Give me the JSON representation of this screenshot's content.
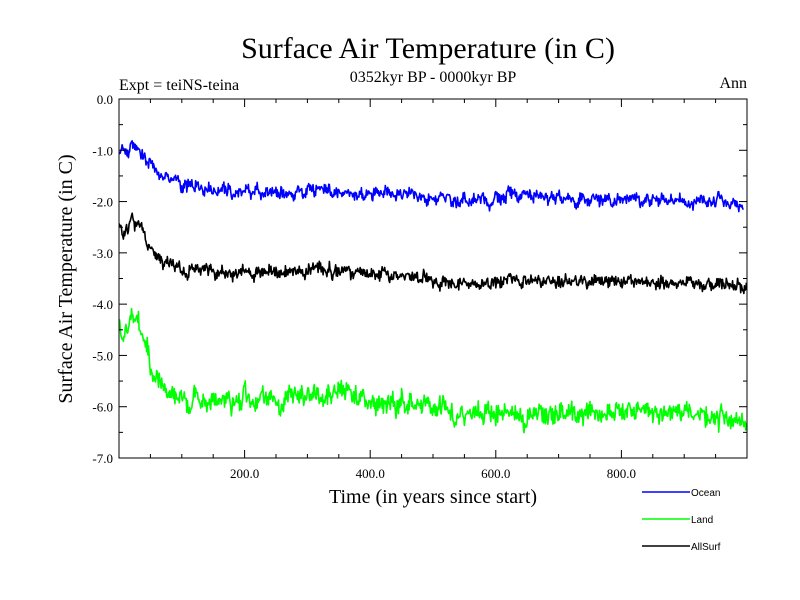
{
  "chart_data": {
    "type": "line",
    "title": "Surface Air Temperature (in C)",
    "subtitle": "0352kyr BP - 0000kyr BP",
    "experiment_label": "Expt = teiNS-teina",
    "season_label": "Ann",
    "xlabel": "Time (in years since start)",
    "ylabel": "Surface Air Temperature (in C)",
    "xlim": [
      0,
      1000
    ],
    "ylim": [
      -7.0,
      0.0
    ],
    "x_ticks": [
      200,
      400,
      600,
      800
    ],
    "x_tick_labels": [
      "200.0",
      "400.0",
      "600.0",
      "800.0"
    ],
    "y_ticks": [
      0,
      -1,
      -2,
      -3,
      -4,
      -5,
      -6,
      -7
    ],
    "y_tick_labels": [
      "0.0",
      "-1.0",
      "-2.0",
      "-3.0",
      "-4.0",
      "-5.0",
      "-6.0",
      "-7.0"
    ],
    "legend_position": "bottom-right",
    "x_step": 5,
    "series": [
      {
        "name": "Ocean",
        "color": "#0000ff",
        "values": [
          -1.05,
          -0.95,
          -1.0,
          -1.1,
          -0.85,
          -0.9,
          -0.95,
          -1.05,
          -1.1,
          -1.25,
          -1.2,
          -1.3,
          -1.4,
          -1.5,
          -1.55,
          -1.45,
          -1.55,
          -1.6,
          -1.5,
          -1.6,
          -1.75,
          -1.7,
          -1.7,
          -1.65,
          -1.75,
          -1.7,
          -1.7,
          -1.8,
          -1.75,
          -1.7,
          -1.8,
          -1.85,
          -1.75,
          -1.7,
          -1.8,
          -1.75,
          -1.9,
          -1.85,
          -1.8,
          -1.9,
          -1.8,
          -1.75,
          -1.85,
          -1.8,
          -1.7,
          -1.9,
          -1.85,
          -1.8,
          -1.8,
          -1.85,
          -1.75,
          -1.85,
          -1.8,
          -1.9,
          -1.8,
          -1.85,
          -1.9,
          -1.75,
          -1.8,
          -1.9,
          -1.75,
          -1.7,
          -1.8,
          -1.75,
          -1.7,
          -1.75,
          -1.8,
          -1.7,
          -1.9,
          -1.8,
          -1.85,
          -1.85,
          -1.75,
          -1.8,
          -1.9,
          -1.9,
          -1.85,
          -1.8,
          -1.95,
          -1.85,
          -1.9,
          -1.85,
          -1.8,
          -1.9,
          -1.85,
          -1.75,
          -1.85,
          -1.9,
          -1.95,
          -1.85,
          -1.9,
          -1.8,
          -1.85,
          -1.75,
          -1.85,
          -1.9,
          -1.95,
          -1.9,
          -2.0,
          -1.9,
          -1.95,
          -2.0,
          -1.9,
          -1.85,
          -2.0,
          -1.9,
          -2.0,
          -1.95,
          -2.05,
          -1.95,
          -1.9,
          -2.0,
          -2.05,
          -1.95,
          -2.0,
          -1.95,
          -1.9,
          -2.0,
          -2.1,
          -2.0,
          -1.9,
          -1.95,
          -1.95,
          -1.95,
          -1.75,
          -1.85,
          -1.8,
          -1.95,
          -1.9,
          -1.8,
          -1.85,
          -1.9,
          -1.95,
          -1.85,
          -1.9,
          -1.9,
          -1.95,
          -2.0,
          -1.85,
          -1.95,
          -1.9,
          -1.95,
          -2.0,
          -1.9,
          -1.95,
          -2.0,
          -2.05,
          -1.9,
          -1.95,
          -2.0,
          -2.0,
          -1.9,
          -1.95,
          -2.0,
          -2.0,
          -1.95,
          -1.9,
          -2.05,
          -1.95,
          -1.95,
          -2.0,
          -1.9,
          -1.95,
          -1.95,
          -1.95,
          -1.9,
          -2.05,
          -2.0,
          -1.95,
          -2.0,
          -1.95,
          -1.95,
          -2.0,
          -1.9,
          -1.95,
          -2.05,
          -1.95,
          -2.05,
          -1.95,
          -1.95,
          -2.0,
          -2.05,
          -2.0,
          -2.05,
          -1.95,
          -1.95,
          -1.9,
          -2.05,
          -1.95,
          -2.05,
          -2.0,
          -1.85,
          -2.0,
          -2.05,
          -2.1,
          -2.0,
          -2.05,
          -2.1,
          -2.1
        ]
      },
      {
        "name": "Land",
        "color": "#00ff00",
        "values": [
          -4.2,
          -4.8,
          -4.5,
          -4.6,
          -4.1,
          -4.3,
          -4.2,
          -4.6,
          -4.7,
          -4.85,
          -5.3,
          -5.4,
          -5.45,
          -5.5,
          -5.6,
          -5.75,
          -5.7,
          -5.75,
          -5.8,
          -5.85,
          -5.75,
          -5.95,
          -6.0,
          -6.05,
          -5.7,
          -5.85,
          -5.9,
          -5.85,
          -5.95,
          -5.95,
          -5.8,
          -5.95,
          -5.9,
          -5.85,
          -5.9,
          -5.8,
          -6.05,
          -5.9,
          -5.9,
          -6.0,
          -5.65,
          -5.75,
          -5.95,
          -5.95,
          -5.95,
          -5.8,
          -5.8,
          -5.85,
          -5.85,
          -5.8,
          -5.9,
          -6.0,
          -6.05,
          -5.8,
          -5.75,
          -5.8,
          -5.75,
          -5.8,
          -5.75,
          -5.9,
          -5.85,
          -5.8,
          -5.7,
          -5.8,
          -5.85,
          -5.9,
          -5.75,
          -5.75,
          -5.75,
          -5.7,
          -5.7,
          -5.65,
          -5.8,
          -5.6,
          -5.85,
          -5.75,
          -5.8,
          -5.7,
          -5.75,
          -5.95,
          -5.9,
          -5.85,
          -6.0,
          -5.9,
          -5.95,
          -6.0,
          -5.95,
          -5.85,
          -6.05,
          -6.05,
          -5.8,
          -6.05,
          -5.95,
          -5.85,
          -6.0,
          -6.0,
          -6.0,
          -6.0,
          -5.9,
          -5.95,
          -6.1,
          -6.1,
          -6.0,
          -5.95,
          -5.95,
          -6.05,
          -6.1,
          -6.25,
          -6.2,
          -6.1,
          -6.25,
          -6.05,
          -6.2,
          -6.1,
          -6.05,
          -6.15,
          -6.25,
          -6.0,
          -6.1,
          -6.15,
          -6.2,
          -6.05,
          -6.2,
          -6.15,
          -6.1,
          -6.2,
          -6.1,
          -6.25,
          -6.15,
          -6.35,
          -6.25,
          -6.2,
          -6.15,
          -6.2,
          -6.05,
          -6.15,
          -6.2,
          -6.15,
          -6.2,
          -6.1,
          -6.1,
          -6.05,
          -6.15,
          -6.15,
          -6.05,
          -6.1,
          -6.25,
          -6.15,
          -6.2,
          -6.05,
          -6.1,
          -6.1,
          -6.05,
          -6.2,
          -6.1,
          -6.2,
          -6.1,
          -6.1,
          -6.15,
          -6.0,
          -6.05,
          -6.1,
          -6.05,
          -6.0,
          -6.15,
          -6.05,
          -6.1,
          -6.05,
          -6.1,
          -6.1,
          -6.15,
          -6.15,
          -6.15,
          -6.15,
          -6.15,
          -6.05,
          -6.15,
          -6.05,
          -6.05,
          -6.15,
          -6.15,
          -6.05,
          -6.15,
          -6.2,
          -6.05,
          -6.15,
          -6.2,
          -6.2,
          -6.3,
          -6.2,
          -6.25,
          -6.3,
          -6.1,
          -6.2,
          -6.25,
          -6.25,
          -6.25,
          -6.3,
          -6.25,
          -6.3
        ]
      },
      {
        "name": "AllSurf",
        "color": "#000000",
        "values": [
          -2.4,
          -2.65,
          -2.55,
          -2.5,
          -2.25,
          -2.45,
          -2.45,
          -2.5,
          -2.55,
          -2.85,
          -2.9,
          -3.05,
          -3.05,
          -3.15,
          -3.25,
          -3.15,
          -3.2,
          -3.25,
          -3.25,
          -3.25,
          -3.35,
          -3.4,
          -3.45,
          -3.25,
          -3.35,
          -3.3,
          -3.4,
          -3.3,
          -3.35,
          -3.35,
          -3.35,
          -3.45,
          -3.4,
          -3.35,
          -3.45,
          -3.35,
          -3.45,
          -3.4,
          -3.4,
          -3.35,
          -3.35,
          -3.35,
          -3.45,
          -3.45,
          -3.35,
          -3.4,
          -3.4,
          -3.4,
          -3.3,
          -3.35,
          -3.35,
          -3.4,
          -3.4,
          -3.35,
          -3.35,
          -3.35,
          -3.3,
          -3.35,
          -3.3,
          -3.45,
          -3.35,
          -3.3,
          -3.25,
          -3.3,
          -3.3,
          -3.35,
          -3.35,
          -3.3,
          -3.45,
          -3.35,
          -3.35,
          -3.35,
          -3.3,
          -3.25,
          -3.45,
          -3.35,
          -3.4,
          -3.35,
          -3.35,
          -3.45,
          -3.4,
          -3.45,
          -3.45,
          -3.45,
          -3.35,
          -3.4,
          -3.45,
          -3.45,
          -3.45,
          -3.45,
          -3.4,
          -3.45,
          -3.5,
          -3.45,
          -3.45,
          -3.45,
          -3.55,
          -3.45,
          -3.5,
          -3.45,
          -3.6,
          -3.55,
          -3.65,
          -3.55,
          -3.55,
          -3.6,
          -3.55,
          -3.65,
          -3.6,
          -3.6,
          -3.6,
          -3.6,
          -3.6,
          -3.55,
          -3.65,
          -3.65,
          -3.6,
          -3.55,
          -3.7,
          -3.55,
          -3.55,
          -3.6,
          -3.55,
          -3.55,
          -3.45,
          -3.5,
          -3.55,
          -3.55,
          -3.6,
          -3.5,
          -3.55,
          -3.55,
          -3.55,
          -3.5,
          -3.6,
          -3.6,
          -3.5,
          -3.55,
          -3.55,
          -3.6,
          -3.55,
          -3.6,
          -3.5,
          -3.55,
          -3.55,
          -3.55,
          -3.6,
          -3.5,
          -3.5,
          -3.6,
          -3.55,
          -3.5,
          -3.55,
          -3.55,
          -3.55,
          -3.55,
          -3.6,
          -3.55,
          -3.55,
          -3.55,
          -3.6,
          -3.6,
          -3.55,
          -3.55,
          -3.55,
          -3.55,
          -3.55,
          -3.55,
          -3.55,
          -3.6,
          -3.55,
          -3.65,
          -3.6,
          -3.55,
          -3.6,
          -3.6,
          -3.55,
          -3.6,
          -3.6,
          -3.55,
          -3.6,
          -3.55,
          -3.5,
          -3.65,
          -3.6,
          -3.6,
          -3.65,
          -3.6,
          -3.55,
          -3.65,
          -3.6,
          -3.55,
          -3.6,
          -3.6,
          -3.6,
          -3.65,
          -3.7,
          -3.6,
          -3.65,
          -3.7
        ]
      }
    ]
  }
}
